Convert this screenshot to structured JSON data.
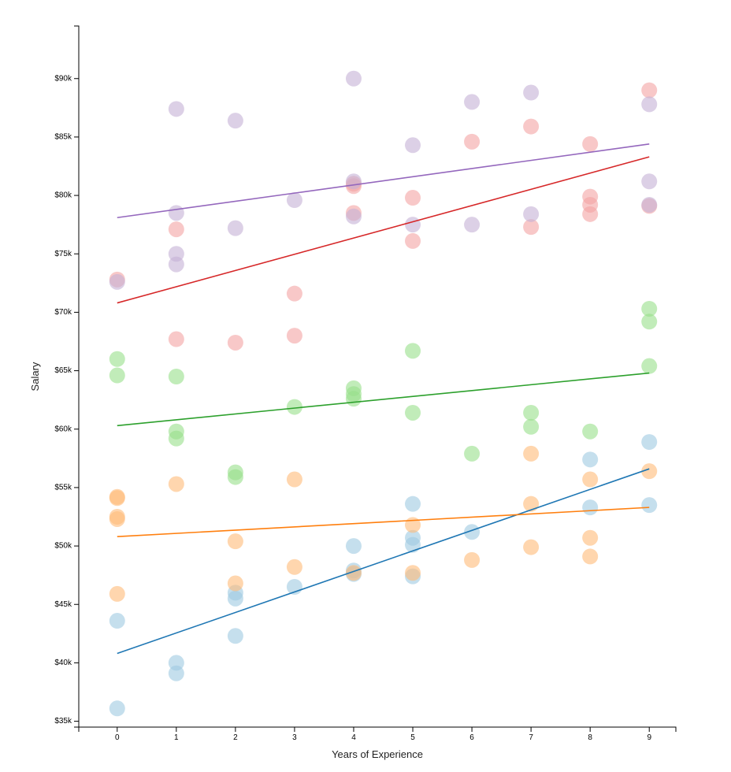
{
  "chart_data": {
    "type": "scatter",
    "title": "",
    "xlabel": "Years of Experience",
    "ylabel": "Salary",
    "xlim": [
      -0.65,
      9.45
    ],
    "ylim": [
      34500,
      94500
    ],
    "x_ticks": [
      0,
      1,
      2,
      3,
      4,
      5,
      6,
      7,
      8,
      9
    ],
    "y_ticks": [
      35000,
      40000,
      45000,
      50000,
      55000,
      60000,
      65000,
      70000,
      75000,
      80000,
      85000,
      90000
    ],
    "y_tick_labels": [
      "$35k",
      "$40k",
      "$45k",
      "$50k",
      "$55k",
      "$60k",
      "$65k",
      "$70k",
      "$75k",
      "$80k",
      "$85k",
      "$90k"
    ],
    "grid": false,
    "legend": "none",
    "series": [
      {
        "name": "blue",
        "point_color": "#9ecae1",
        "line_color": "#1f77b4",
        "points": [
          [
            0,
            43600
          ],
          [
            0,
            36100
          ],
          [
            1,
            40000
          ],
          [
            1,
            39100
          ],
          [
            2,
            46000
          ],
          [
            2,
            45500
          ],
          [
            2,
            42300
          ],
          [
            3,
            46500
          ],
          [
            4,
            50000
          ],
          [
            4,
            47900
          ],
          [
            4,
            47600
          ],
          [
            5,
            53600
          ],
          [
            5,
            50700
          ],
          [
            5,
            50100
          ],
          [
            5,
            47400
          ],
          [
            6,
            51200
          ],
          [
            8,
            57400
          ],
          [
            8,
            53300
          ],
          [
            9,
            58900
          ],
          [
            9,
            53500
          ]
        ],
        "trendline": [
          [
            0,
            40800
          ],
          [
            9,
            56600
          ]
        ]
      },
      {
        "name": "orange",
        "point_color": "#ffbb78",
        "line_color": "#ff7f0e",
        "points": [
          [
            0,
            54200
          ],
          [
            0,
            54100
          ],
          [
            0,
            52500
          ],
          [
            0,
            52300
          ],
          [
            0,
            45900
          ],
          [
            1,
            55300
          ],
          [
            2,
            50400
          ],
          [
            2,
            46800
          ],
          [
            3,
            55700
          ],
          [
            3,
            48200
          ],
          [
            4,
            47700
          ],
          [
            5,
            51800
          ],
          [
            5,
            47700
          ],
          [
            6,
            48800
          ],
          [
            7,
            57900
          ],
          [
            7,
            53600
          ],
          [
            7,
            49900
          ],
          [
            8,
            55700
          ],
          [
            8,
            50700
          ],
          [
            8,
            49100
          ],
          [
            9,
            56400
          ]
        ],
        "trendline": [
          [
            0,
            50800
          ],
          [
            9,
            53300
          ]
        ]
      },
      {
        "name": "green",
        "point_color": "#98df8a",
        "line_color": "#2ca02c",
        "points": [
          [
            0,
            66000
          ],
          [
            0,
            64600
          ],
          [
            1,
            64500
          ],
          [
            1,
            59800
          ],
          [
            1,
            59200
          ],
          [
            2,
            56300
          ],
          [
            2,
            55900
          ],
          [
            3,
            61900
          ],
          [
            4,
            63500
          ],
          [
            4,
            63000
          ],
          [
            4,
            62600
          ],
          [
            5,
            66700
          ],
          [
            5,
            61400
          ],
          [
            6,
            57900
          ],
          [
            7,
            61400
          ],
          [
            7,
            60200
          ],
          [
            8,
            59800
          ],
          [
            9,
            70300
          ],
          [
            9,
            69200
          ],
          [
            9,
            65400
          ]
        ],
        "trendline": [
          [
            0,
            60300
          ],
          [
            9,
            64800
          ]
        ]
      },
      {
        "name": "red",
        "point_color": "#f4a3a3",
        "line_color": "#d62728",
        "points": [
          [
            0,
            72800
          ],
          [
            1,
            77100
          ],
          [
            1,
            67700
          ],
          [
            2,
            67400
          ],
          [
            3,
            71600
          ],
          [
            3,
            68000
          ],
          [
            4,
            81000
          ],
          [
            4,
            80800
          ],
          [
            4,
            78500
          ],
          [
            5,
            79800
          ],
          [
            5,
            76100
          ],
          [
            6,
            84600
          ],
          [
            7,
            85900
          ],
          [
            7,
            77300
          ],
          [
            8,
            84400
          ],
          [
            8,
            79900
          ],
          [
            8,
            79200
          ],
          [
            8,
            78400
          ],
          [
            9,
            89000
          ],
          [
            9,
            79100
          ]
        ],
        "trendline": [
          [
            0,
            70800
          ],
          [
            9,
            83300
          ]
        ]
      },
      {
        "name": "purple",
        "point_color": "#c5b0d5",
        "line_color": "#9467bd",
        "points": [
          [
            0,
            72600
          ],
          [
            1,
            87400
          ],
          [
            1,
            78500
          ],
          [
            1,
            75000
          ],
          [
            1,
            74100
          ],
          [
            2,
            86400
          ],
          [
            2,
            77200
          ],
          [
            3,
            79600
          ],
          [
            4,
            90000
          ],
          [
            4,
            81200
          ],
          [
            4,
            78200
          ],
          [
            5,
            84300
          ],
          [
            5,
            77500
          ],
          [
            6,
            88000
          ],
          [
            6,
            77500
          ],
          [
            7,
            88800
          ],
          [
            7,
            78400
          ],
          [
            9,
            87800
          ],
          [
            9,
            81200
          ],
          [
            9,
            79200
          ]
        ],
        "trendline": [
          [
            0,
            78100
          ],
          [
            9,
            84400
          ]
        ]
      }
    ]
  }
}
